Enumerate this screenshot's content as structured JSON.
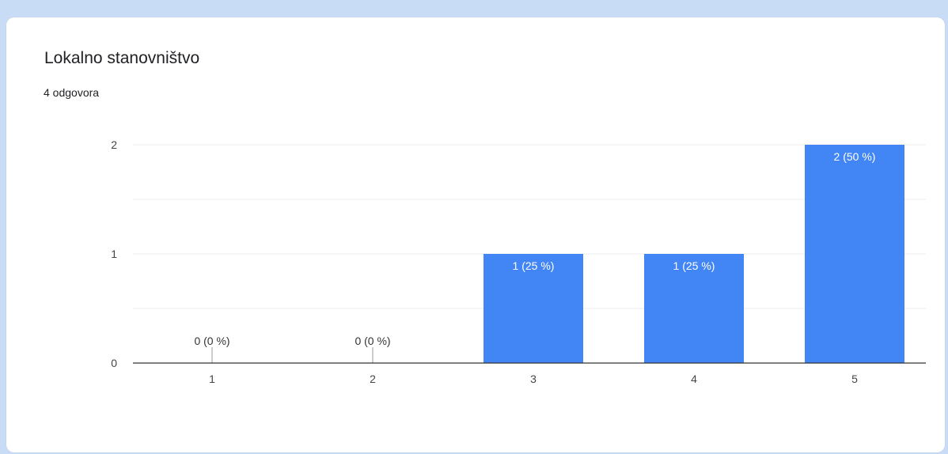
{
  "card": {
    "title": "Lokalno stanovništvo",
    "subtitle": "4 odgovora"
  },
  "colors": {
    "bar": "#4285f4",
    "grid": "#eeeeee",
    "axis": "#333333",
    "page_bg": "#c9dcf5"
  },
  "chart_data": {
    "type": "bar",
    "title": "Lokalno stanovništvo",
    "xlabel": "",
    "ylabel": "",
    "categories": [
      "1",
      "2",
      "3",
      "4",
      "5"
    ],
    "values": [
      0,
      0,
      1,
      1,
      2
    ],
    "value_labels": [
      "0 (0 %)",
      "0 (0 %)",
      "1 (25 %)",
      "1 (25 %)",
      "2 (50 %)"
    ],
    "ylim": [
      0,
      2
    ],
    "yticks": [
      "0",
      "1",
      "2"
    ],
    "grid": true,
    "legend": "none"
  }
}
